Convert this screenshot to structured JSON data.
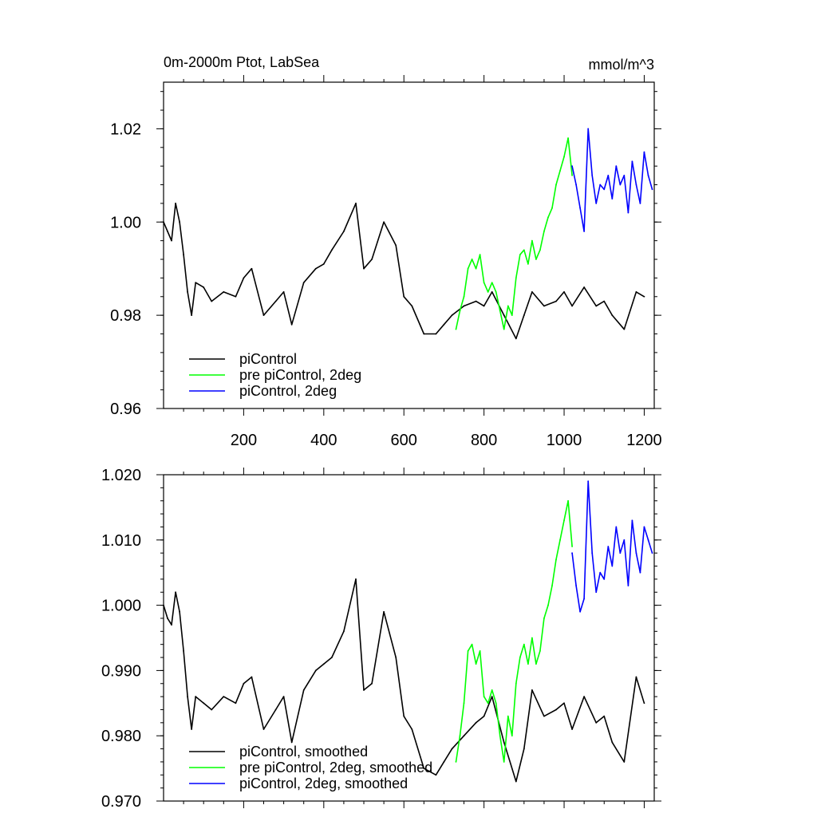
{
  "chart_data": [
    {
      "type": "line",
      "title_left": "0m-2000m Ptot, LabSea",
      "title_right": "mmol/m^3",
      "xlim": [
        0,
        1225
      ],
      "ylim": [
        0.96,
        1.03
      ],
      "x_ticks": [
        200,
        400,
        600,
        800,
        1000,
        1200
      ],
      "x_tick_labels": [
        "200",
        "400",
        "600",
        "800",
        "1000",
        "1200"
      ],
      "y_ticks": [
        0.96,
        0.98,
        1.0,
        1.02
      ],
      "y_tick_labels": [
        "0.96",
        "0.98",
        "1.00",
        "1.02"
      ],
      "legend_position": "bottom-left",
      "series": [
        {
          "name": "piControl",
          "color": "#000000",
          "x": [
            0,
            10,
            20,
            30,
            40,
            50,
            60,
            70,
            80,
            100,
            120,
            150,
            180,
            200,
            220,
            250,
            280,
            300,
            320,
            350,
            380,
            400,
            420,
            450,
            480,
            500,
            520,
            550,
            580,
            600,
            620,
            650,
            680,
            700,
            720,
            750,
            780,
            800,
            820,
            850,
            880,
            900,
            920,
            950,
            980,
            1000,
            1020,
            1050,
            1080,
            1100,
            1120,
            1150,
            1180,
            1200
          ],
          "y": [
            1.0,
            0.998,
            0.996,
            1.004,
            1.0,
            0.993,
            0.985,
            0.98,
            0.987,
            0.986,
            0.983,
            0.985,
            0.984,
            0.988,
            0.99,
            0.98,
            0.983,
            0.985,
            0.978,
            0.987,
            0.99,
            0.991,
            0.994,
            0.998,
            1.004,
            0.99,
            0.992,
            1.0,
            0.995,
            0.984,
            0.982,
            0.976,
            0.976,
            0.978,
            0.98,
            0.982,
            0.983,
            0.982,
            0.985,
            0.98,
            0.975,
            0.98,
            0.985,
            0.982,
            0.983,
            0.985,
            0.982,
            0.986,
            0.982,
            0.983,
            0.98,
            0.977,
            0.985,
            0.984
          ]
        },
        {
          "name": "pre piControl, 2deg",
          "color": "#00ff00",
          "x": [
            730,
            740,
            750,
            760,
            770,
            780,
            790,
            800,
            810,
            820,
            830,
            840,
            850,
            860,
            870,
            880,
            890,
            900,
            910,
            920,
            930,
            940,
            950,
            960,
            970,
            980,
            990,
            1000,
            1010,
            1020
          ],
          "y": [
            0.977,
            0.981,
            0.984,
            0.99,
            0.992,
            0.99,
            0.993,
            0.987,
            0.985,
            0.987,
            0.985,
            0.981,
            0.977,
            0.982,
            0.98,
            0.988,
            0.993,
            0.994,
            0.991,
            0.996,
            0.992,
            0.994,
            0.998,
            1.001,
            1.003,
            1.008,
            1.011,
            1.014,
            1.018,
            1.01
          ]
        },
        {
          "name": "piControl, 2deg",
          "color": "#0000ff",
          "x": [
            1020,
            1030,
            1040,
            1050,
            1060,
            1070,
            1080,
            1090,
            1100,
            1110,
            1120,
            1130,
            1140,
            1150,
            1160,
            1170,
            1180,
            1190,
            1200,
            1210,
            1220
          ],
          "y": [
            1.012,
            1.008,
            1.003,
            0.998,
            1.02,
            1.01,
            1.004,
            1.008,
            1.007,
            1.01,
            1.005,
            1.012,
            1.008,
            1.01,
            1.002,
            1.013,
            1.008,
            1.004,
            1.015,
            1.01,
            1.007
          ]
        }
      ]
    },
    {
      "type": "line",
      "xlim": [
        0,
        1225
      ],
      "ylim": [
        0.97,
        1.02
      ],
      "x_ticks": [
        200,
        400,
        600,
        800,
        1000,
        1200
      ],
      "y_ticks": [
        0.97,
        0.98,
        0.99,
        1.0,
        1.01,
        1.02
      ],
      "y_tick_labels": [
        "0.970",
        "0.980",
        "0.990",
        "1.000",
        "1.010",
        "1.020"
      ],
      "legend_position": "bottom-left",
      "series": [
        {
          "name": "piControl, smoothed",
          "color": "#000000",
          "x": [
            0,
            10,
            20,
            30,
            40,
            50,
            60,
            70,
            80,
            100,
            120,
            150,
            180,
            200,
            220,
            250,
            280,
            300,
            320,
            350,
            380,
            400,
            420,
            450,
            480,
            500,
            520,
            550,
            580,
            600,
            620,
            650,
            680,
            700,
            720,
            750,
            780,
            800,
            820,
            850,
            880,
            900,
            920,
            950,
            980,
            1000,
            1020,
            1050,
            1080,
            1100,
            1120,
            1150,
            1180,
            1200
          ],
          "y": [
            1.0,
            0.998,
            0.997,
            1.002,
            0.999,
            0.993,
            0.986,
            0.981,
            0.986,
            0.985,
            0.984,
            0.986,
            0.985,
            0.988,
            0.989,
            0.981,
            0.984,
            0.986,
            0.979,
            0.987,
            0.99,
            0.991,
            0.992,
            0.996,
            1.004,
            0.987,
            0.988,
            0.999,
            0.992,
            0.983,
            0.981,
            0.975,
            0.974,
            0.976,
            0.978,
            0.98,
            0.982,
            0.983,
            0.986,
            0.979,
            0.973,
            0.978,
            0.987,
            0.983,
            0.984,
            0.985,
            0.981,
            0.986,
            0.982,
            0.983,
            0.979,
            0.976,
            0.989,
            0.985
          ]
        },
        {
          "name": "pre piControl, 2deg, smoothed",
          "color": "#00ff00",
          "x": [
            730,
            740,
            750,
            760,
            770,
            780,
            790,
            800,
            810,
            820,
            830,
            840,
            850,
            860,
            870,
            880,
            890,
            900,
            910,
            920,
            930,
            940,
            950,
            960,
            970,
            980,
            990,
            1000,
            1010,
            1020
          ],
          "y": [
            0.976,
            0.98,
            0.985,
            0.993,
            0.994,
            0.991,
            0.993,
            0.986,
            0.985,
            0.987,
            0.985,
            0.98,
            0.976,
            0.983,
            0.98,
            0.988,
            0.992,
            0.994,
            0.991,
            0.995,
            0.991,
            0.993,
            0.998,
            1.0,
            1.003,
            1.007,
            1.01,
            1.013,
            1.016,
            1.009
          ]
        },
        {
          "name": "piControl, 2deg, smoothed",
          "color": "#0000ff",
          "x": [
            1020,
            1030,
            1040,
            1050,
            1060,
            1070,
            1080,
            1090,
            1100,
            1110,
            1120,
            1130,
            1140,
            1150,
            1160,
            1170,
            1180,
            1190,
            1200,
            1210,
            1220
          ],
          "y": [
            1.008,
            1.003,
            0.999,
            1.001,
            1.019,
            1.008,
            1.002,
            1.005,
            1.004,
            1.009,
            1.006,
            1.012,
            1.008,
            1.01,
            1.003,
            1.013,
            1.008,
            1.005,
            1.012,
            1.01,
            1.008
          ]
        }
      ]
    }
  ]
}
